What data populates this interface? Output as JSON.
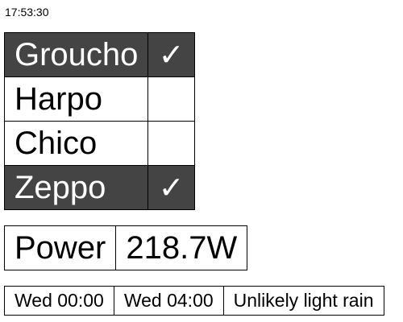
{
  "clock": {
    "time": "17:53:30"
  },
  "toggles": [
    {
      "label": "Groucho",
      "checked": true,
      "mark": "✓"
    },
    {
      "label": "Harpo",
      "checked": false,
      "mark": ""
    },
    {
      "label": "Chico",
      "checked": false,
      "mark": ""
    },
    {
      "label": "Zeppo",
      "checked": true,
      "mark": "✓"
    }
  ],
  "power": {
    "label": "Power",
    "value": "218.7W"
  },
  "forecast": {
    "start": "Wed 00:00",
    "end": "Wed 04:00",
    "summary": "Unlikely light rain"
  },
  "colors": {
    "selected_background": "#444444",
    "selected_text": "#ffffff"
  }
}
